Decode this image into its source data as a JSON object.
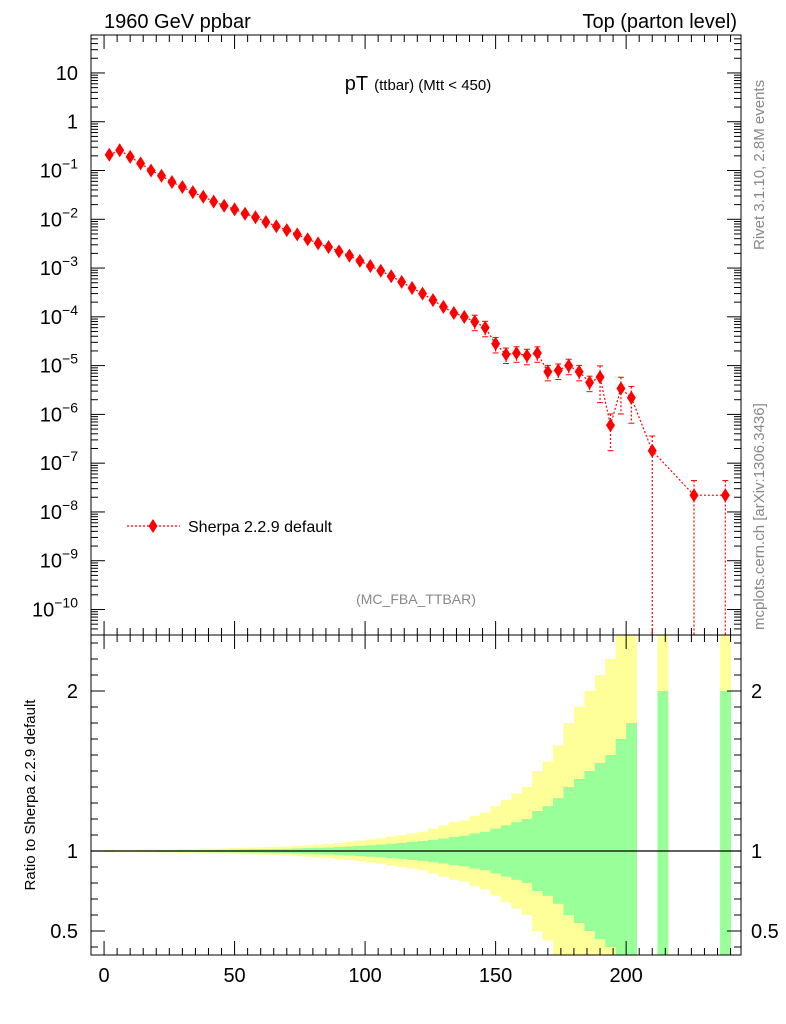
{
  "header": {
    "left": "1960 GeV ppbar",
    "right": "Top (parton level)"
  },
  "side_labels": {
    "rivet": "Rivet 3.1.10,  2.8M events",
    "mcplots": "mcplots.cern.ch [arXiv:1306.3436]"
  },
  "chart_data": [
    {
      "type": "scatter",
      "title_main": "pT",
      "title_sub": "(ttbar) (Mtt < 450)",
      "watermark": "(MC_FBA_TTBAR)",
      "yscale": "log",
      "xlim": [
        -5,
        244
      ],
      "ylim": [
        3e-11,
        60
      ],
      "ytick_labels": [
        {
          "value": 10,
          "text": "10"
        },
        {
          "value": 1,
          "text": "1"
        },
        {
          "value": 0.1,
          "base": "10",
          "exp": "−1"
        },
        {
          "value": 0.01,
          "base": "10",
          "exp": "−2"
        },
        {
          "value": 0.001,
          "base": "10",
          "exp": "−3"
        },
        {
          "value": 0.0001,
          "base": "10",
          "exp": "−4"
        },
        {
          "value": 1e-05,
          "base": "10",
          "exp": "−5"
        },
        {
          "value": 1e-06,
          "base": "10",
          "exp": "−6"
        },
        {
          "value": 1e-07,
          "base": "10",
          "exp": "−7"
        },
        {
          "value": 1e-08,
          "base": "10",
          "exp": "−8"
        },
        {
          "value": 1e-09,
          "base": "10",
          "exp": "−9"
        },
        {
          "value": 1e-10,
          "base": "10",
          "exp": "−10"
        }
      ],
      "legend": {
        "label": "Sherpa 2.2.9 default",
        "position": "bottom-left"
      },
      "series": [
        {
          "name": "Sherpa 2.2.9 default",
          "color": "#ff0000",
          "x": [
            2,
            6,
            10,
            14,
            18,
            22,
            26,
            30,
            34,
            38,
            42,
            46,
            50,
            54,
            58,
            62,
            66,
            70,
            74,
            78,
            82,
            86,
            90,
            94,
            98,
            102,
            106,
            110,
            114,
            118,
            122,
            126,
            130,
            134,
            138,
            142,
            146,
            150,
            154,
            158,
            162,
            166,
            170,
            174,
            178,
            182,
            186,
            190,
            194,
            198,
            202,
            210,
            226,
            238
          ],
          "y": [
            0.21,
            0.26,
            0.19,
            0.14,
            0.1,
            0.078,
            0.058,
            0.046,
            0.036,
            0.029,
            0.023,
            0.019,
            0.016,
            0.013,
            0.011,
            0.0088,
            0.0072,
            0.006,
            0.0049,
            0.0039,
            0.0032,
            0.0027,
            0.0022,
            0.0018,
            0.0014,
            0.0011,
            0.00088,
            0.00068,
            0.00052,
            0.00039,
            0.0003,
            0.00022,
            0.00016,
            0.00012,
            0.0001,
            8e-05,
            6e-05,
            2.8e-05,
            1.7e-05,
            1.8e-05,
            1.6e-05,
            1.8e-05,
            7.5e-06,
            8e-06,
            1e-05,
            7.5e-06,
            4.5e-06,
            5.8e-06,
            6e-07,
            3.4e-06,
            2.2e-06,
            1.8e-07,
            2.2e-08,
            2.2e-08
          ]
        }
      ]
    },
    {
      "type": "area",
      "ylabel": "Ratio to Sherpa 2.2.9 default",
      "ylim": [
        0.35,
        2.35
      ],
      "xlim": [
        -5,
        244
      ],
      "x_ticks": [
        0,
        50,
        100,
        150,
        200
      ],
      "y_ticks": [
        0.5,
        1,
        2
      ],
      "reference_line": 1,
      "bands": {
        "bin_width": 4,
        "x_start": 0,
        "inner_color": "#99ff99",
        "outer_color": "#ffff99",
        "inner_half": [
          0.004,
          0.003,
          0.003,
          0.004,
          0.004,
          0.005,
          0.005,
          0.006,
          0.006,
          0.007,
          0.007,
          0.008,
          0.009,
          0.01,
          0.011,
          0.012,
          0.013,
          0.014,
          0.016,
          0.018,
          0.02,
          0.022,
          0.025,
          0.028,
          0.032,
          0.036,
          0.04,
          0.045,
          0.05,
          0.056,
          0.062,
          0.07,
          0.078,
          0.088,
          0.096,
          0.11,
          0.12,
          0.14,
          0.16,
          0.18,
          0.2,
          0.25,
          0.28,
          0.33,
          0.4,
          0.45,
          0.5,
          0.55,
          0.6,
          0.7,
          0.8,
          0,
          0,
          1.0,
          0,
          0,
          0,
          0,
          0,
          1.0,
          0
        ],
        "outer_half": [
          0.008,
          0.006,
          0.006,
          0.008,
          0.008,
          0.01,
          0.01,
          0.012,
          0.012,
          0.014,
          0.014,
          0.016,
          0.018,
          0.02,
          0.022,
          0.024,
          0.026,
          0.028,
          0.032,
          0.036,
          0.04,
          0.044,
          0.05,
          0.056,
          0.064,
          0.072,
          0.08,
          0.09,
          0.1,
          0.11,
          0.12,
          0.14,
          0.16,
          0.18,
          0.19,
          0.22,
          0.24,
          0.28,
          0.32,
          0.36,
          0.4,
          0.5,
          0.56,
          0.66,
          0.8,
          0.9,
          1.0,
          1.1,
          1.2,
          1.4,
          1.6,
          0,
          0,
          1.6,
          0,
          0,
          0,
          0,
          0,
          1.6,
          0
        ]
      }
    }
  ]
}
